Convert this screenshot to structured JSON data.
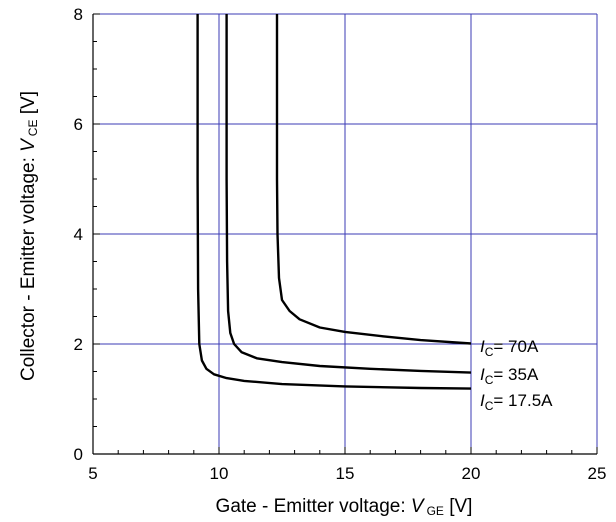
{
  "chart_data": {
    "type": "line",
    "title": "",
    "xlabel": {
      "prefix": "Gate - Emitter voltage: ",
      "symbol": "V",
      "subscript": "GE",
      "suffix": " [V]"
    },
    "ylabel": {
      "prefix": "Collector - Emitter voltage: ",
      "symbol": "V",
      "subscript": "CE",
      "suffix": " [V]"
    },
    "xlim": [
      5,
      25
    ],
    "ylim": [
      0,
      8
    ],
    "x_ticks": [
      5,
      10,
      15,
      20,
      25
    ],
    "y_ticks": [
      0,
      2,
      4,
      6,
      8
    ],
    "x_tick_labels": [
      "5",
      "10",
      "15",
      "20",
      "25"
    ],
    "y_tick_labels": [
      "0",
      "2",
      "4",
      "6",
      "8"
    ],
    "grid": true,
    "grid_color": "#3b3bb5",
    "line_color": "#000000",
    "series": [
      {
        "name": "IC= 70A",
        "label": {
          "symbol": "I",
          "subscript": "C",
          "text": "= 70A"
        },
        "points": [
          [
            12.3,
            8.0
          ],
          [
            12.3,
            5.0
          ],
          [
            12.32,
            4.0
          ],
          [
            12.38,
            3.2
          ],
          [
            12.5,
            2.8
          ],
          [
            12.8,
            2.6
          ],
          [
            13.2,
            2.45
          ],
          [
            14.0,
            2.3
          ],
          [
            15.0,
            2.22
          ],
          [
            16.5,
            2.14
          ],
          [
            18.0,
            2.07
          ],
          [
            20.0,
            2.01
          ]
        ]
      },
      {
        "name": "IC= 35A",
        "label": {
          "symbol": "I",
          "subscript": "C",
          "text": "= 35A"
        },
        "points": [
          [
            10.3,
            8.0
          ],
          [
            10.3,
            5.0
          ],
          [
            10.32,
            3.5
          ],
          [
            10.36,
            2.6
          ],
          [
            10.45,
            2.2
          ],
          [
            10.6,
            2.0
          ],
          [
            10.9,
            1.85
          ],
          [
            11.5,
            1.74
          ],
          [
            12.5,
            1.67
          ],
          [
            14.0,
            1.6
          ],
          [
            16.0,
            1.55
          ],
          [
            18.0,
            1.51
          ],
          [
            20.0,
            1.48
          ]
        ]
      },
      {
        "name": "IC= 17.5A",
        "label": {
          "symbol": "I",
          "subscript": "C",
          "text": "= 17.5A"
        },
        "points": [
          [
            9.15,
            8.0
          ],
          [
            9.15,
            5.0
          ],
          [
            9.17,
            3.0
          ],
          [
            9.22,
            2.0
          ],
          [
            9.32,
            1.7
          ],
          [
            9.5,
            1.55
          ],
          [
            9.8,
            1.45
          ],
          [
            10.3,
            1.38
          ],
          [
            11.0,
            1.33
          ],
          [
            12.5,
            1.27
          ],
          [
            15.0,
            1.23
          ],
          [
            18.0,
            1.2
          ],
          [
            20.0,
            1.19
          ]
        ]
      }
    ]
  }
}
